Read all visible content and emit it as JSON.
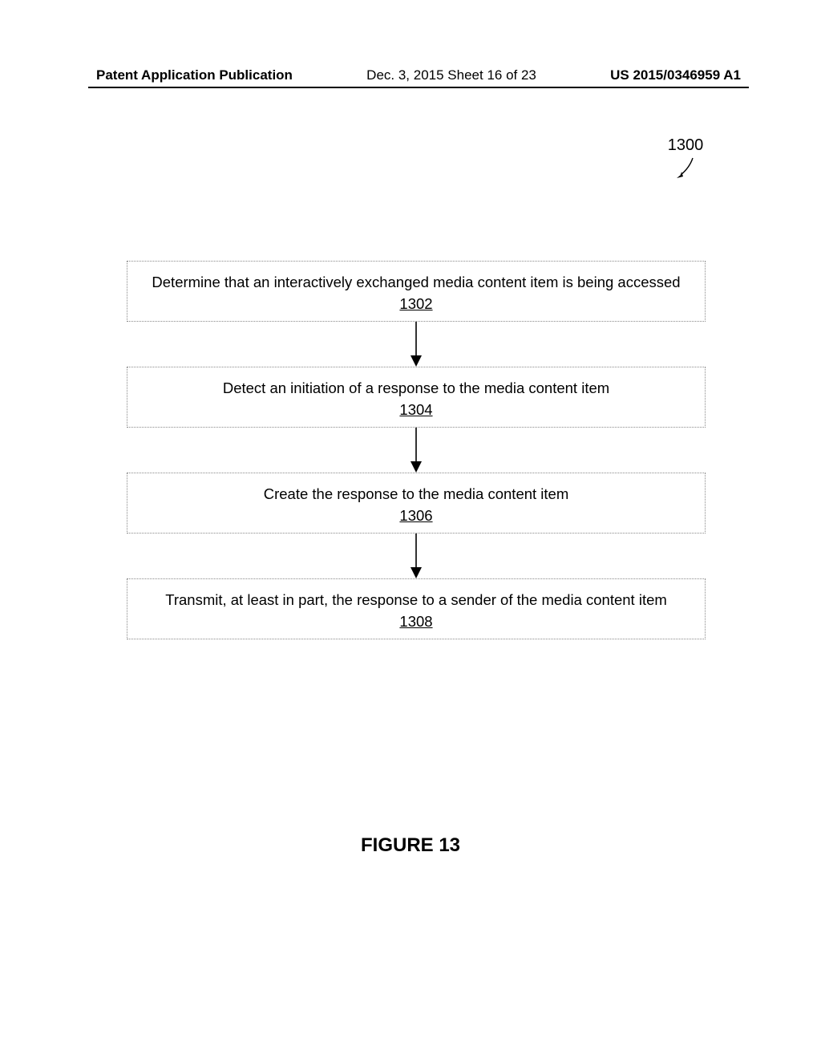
{
  "header": {
    "left": "Patent Application Publication",
    "center": "Dec. 3, 2015  Sheet 16 of 23",
    "right": "US 2015/0346959 A1"
  },
  "reference": {
    "number": "1300"
  },
  "flowchart": {
    "box_border_color": "#8a8a8a",
    "box_border_style": "dotted",
    "text_color": "#000000",
    "step_font_size": 18.5,
    "arrow_gap_height": 56,
    "steps": [
      {
        "text": "Determine that an interactively exchanged media content item is being accessed",
        "num": "1302"
      },
      {
        "text": "Detect an initiation of a response to the media content item",
        "num": "1304"
      },
      {
        "text": "Create the response to the media content item",
        "num": "1306"
      },
      {
        "text": "Transmit, at least in part, the response to a sender of the media content item",
        "num": "1308"
      }
    ]
  },
  "figure_label": "FIGURE 13"
}
